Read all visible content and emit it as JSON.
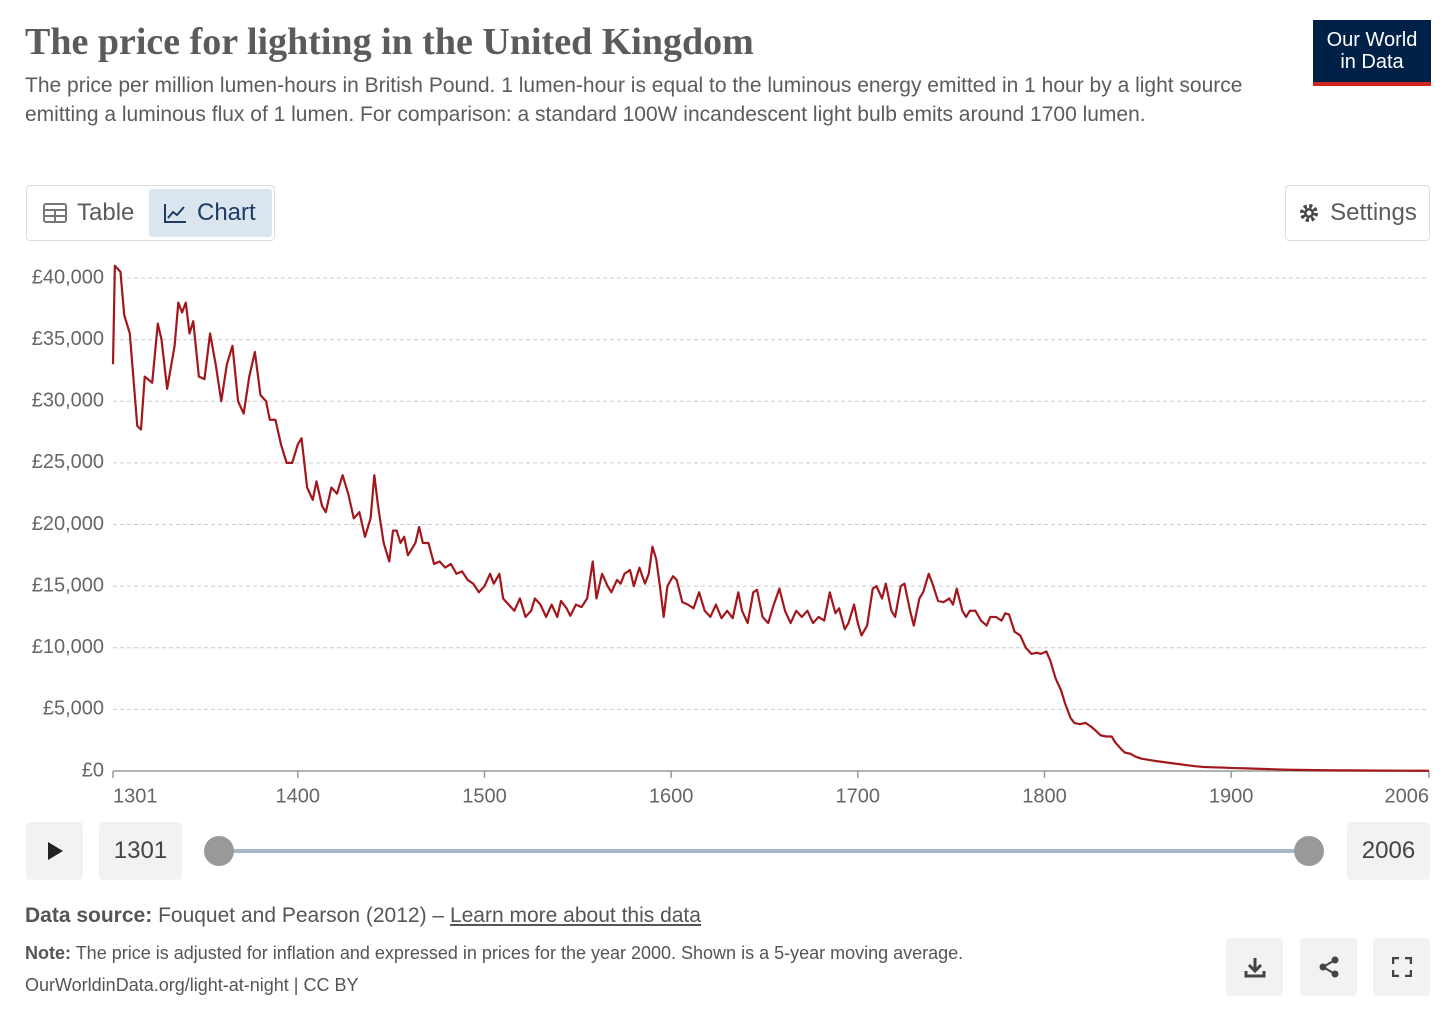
{
  "header": {
    "title": "The price for lighting in the United Kingdom",
    "subtitle": "The price per million lumen-hours in British Pound. 1 lumen-hour is equal to the luminous energy emitted in 1 hour by a light source emitting a luminous flux of 1 lumen. For comparison: a standard 100W incandescent light bulb emits around 1700 lumen.",
    "logo": [
      "Our World",
      "in Data"
    ]
  },
  "tabs": [
    "Table",
    "Chart"
  ],
  "settings": "Settings",
  "chart_data": {
    "type": "line",
    "color": "#a2171c",
    "grid": true,
    "x": [
      1301,
      1302,
      1305,
      1307,
      1310,
      1314,
      1316,
      1318,
      1322,
      1325,
      1327,
      1330,
      1334,
      1336,
      1338,
      1340,
      1342,
      1344,
      1347,
      1350,
      1353,
      1356,
      1359,
      1362,
      1365,
      1368,
      1371,
      1374,
      1377,
      1380,
      1383,
      1385,
      1388,
      1391,
      1394,
      1397,
      1400,
      1402,
      1405,
      1408,
      1410,
      1413,
      1415,
      1418,
      1421,
      1424,
      1427,
      1430,
      1433,
      1436,
      1439,
      1441,
      1443,
      1446,
      1449,
      1451,
      1453,
      1455,
      1457,
      1459,
      1461,
      1463,
      1465,
      1467,
      1470,
      1473,
      1476,
      1479,
      1482,
      1485,
      1488,
      1491,
      1494,
      1497,
      1500,
      1503,
      1505,
      1508,
      1510,
      1513,
      1516,
      1519,
      1522,
      1525,
      1527,
      1530,
      1533,
      1536,
      1539,
      1541,
      1544,
      1546,
      1549,
      1552,
      1555,
      1558,
      1560,
      1563,
      1566,
      1568,
      1571,
      1573,
      1575,
      1578,
      1580,
      1583,
      1586,
      1588,
      1590,
      1592,
      1594,
      1596,
      1598,
      1601,
      1603,
      1606,
      1609,
      1612,
      1615,
      1618,
      1621,
      1624,
      1627,
      1630,
      1633,
      1636,
      1638,
      1641,
      1644,
      1646,
      1649,
      1652,
      1655,
      1658,
      1661,
      1664,
      1667,
      1670,
      1673,
      1676,
      1679,
      1682,
      1685,
      1688,
      1690,
      1693,
      1695,
      1698,
      1700,
      1702,
      1705,
      1708,
      1710,
      1713,
      1715,
      1718,
      1720,
      1723,
      1725,
      1728,
      1730,
      1733,
      1735,
      1738,
      1740,
      1743,
      1746,
      1749,
      1751,
      1753,
      1756,
      1758,
      1760,
      1763,
      1766,
      1769,
      1771,
      1774,
      1777,
      1779,
      1781,
      1784,
      1787,
      1790,
      1793,
      1796,
      1798,
      1801,
      1803,
      1806,
      1809,
      1811,
      1814,
      1816,
      1819,
      1822,
      1825,
      1828,
      1830,
      1833,
      1836,
      1838,
      1841,
      1843,
      1846,
      1849,
      1852,
      1856,
      1860,
      1865,
      1870,
      1875,
      1880,
      1885,
      1890,
      1895,
      1900,
      1910,
      1920,
      1930,
      1940,
      1950,
      1960,
      1970,
      1980,
      1990,
      2000,
      2006
    ],
    "values": [
      33000,
      41000,
      40500,
      37000,
      35500,
      28000,
      27700,
      32000,
      31500,
      36300,
      35000,
      31000,
      34500,
      38000,
      37200,
      38000,
      35500,
      36500,
      32000,
      31800,
      35500,
      33000,
      30000,
      33000,
      34500,
      30000,
      29000,
      32000,
      34000,
      30500,
      30000,
      28500,
      28500,
      26500,
      25000,
      25000,
      26500,
      27000,
      23000,
      22000,
      23500,
      21500,
      21000,
      23000,
      22500,
      24000,
      22500,
      20500,
      21000,
      19000,
      20500,
      24000,
      21500,
      18500,
      17000,
      19500,
      19500,
      18500,
      19000,
      17500,
      18000,
      18500,
      19800,
      18500,
      18500,
      16800,
      17000,
      16500,
      16800,
      16000,
      16200,
      15500,
      15200,
      14500,
      15000,
      16000,
      15200,
      16000,
      14000,
      13500,
      13000,
      14000,
      12500,
      13000,
      14000,
      13500,
      12500,
      13500,
      12500,
      13800,
      13200,
      12600,
      13500,
      13300,
      14000,
      17000,
      14000,
      16000,
      15000,
      14500,
      15500,
      15200,
      16000,
      16300,
      15000,
      16500,
      15200,
      16000,
      18200,
      17200,
      15000,
      12500,
      15000,
      15800,
      15500,
      13700,
      13500,
      13200,
      14500,
      13000,
      12500,
      13500,
      12400,
      13000,
      12400,
      14500,
      13000,
      12000,
      14500,
      14700,
      12500,
      12000,
      13500,
      14800,
      13000,
      12000,
      13000,
      12500,
      13000,
      12000,
      12500,
      12200,
      14500,
      12800,
      13200,
      11500,
      12000,
      13500,
      12000,
      11000,
      11800,
      14800,
      15000,
      14000,
      15200,
      13000,
      12500,
      15000,
      15200,
      13000,
      11800,
      14000,
      14500,
      16000,
      15200,
      13800,
      13700,
      14000,
      13500,
      14800,
      13000,
      12500,
      13000,
      13000,
      12200,
      11800,
      12500,
      12500,
      12200,
      12800,
      12700,
      11300,
      11000,
      10000,
      9500,
      9600,
      9500,
      9700,
      9000,
      7500,
      6500,
      5500,
      4300,
      3900,
      3800,
      3900,
      3600,
      3200,
      2900,
      2800,
      2800,
      2300,
      1800,
      1500,
      1400,
      1150,
      1000,
      900,
      800,
      700,
      600,
      500,
      400,
      330,
      300,
      280,
      250,
      200,
      150,
      100,
      80,
      60,
      50,
      40,
      30,
      25,
      20,
      18
    ],
    "xlim": [
      1301,
      2006
    ],
    "xticks": [
      1301,
      1400,
      1500,
      1600,
      1700,
      1800,
      1900,
      2006
    ],
    "ylim": [
      0,
      40000
    ],
    "yticks": [
      {
        "value": 0,
        "label": "£0"
      },
      {
        "value": 5000,
        "label": "£5,000"
      },
      {
        "value": 10000,
        "label": "£10,000"
      },
      {
        "value": 15000,
        "label": "£15,000"
      },
      {
        "value": 20000,
        "label": "£20,000"
      },
      {
        "value": 25000,
        "label": "£25,000"
      },
      {
        "value": 30000,
        "label": "£30,000"
      },
      {
        "value": 35000,
        "label": "£35,000"
      },
      {
        "value": 40000,
        "label": "£40,000"
      }
    ]
  },
  "footer": {
    "source_label": "Data source:",
    "source": "Fouquet and Pearson (2012) –",
    "source_link": "Learn more about this data",
    "note_label": "Note:",
    "note": "The price is adjusted for inflation and expressed in prices for the year 2000. Shown is a 5-year moving average.",
    "url": "OurWorldinData.org/light-at-night | CC BY"
  }
}
